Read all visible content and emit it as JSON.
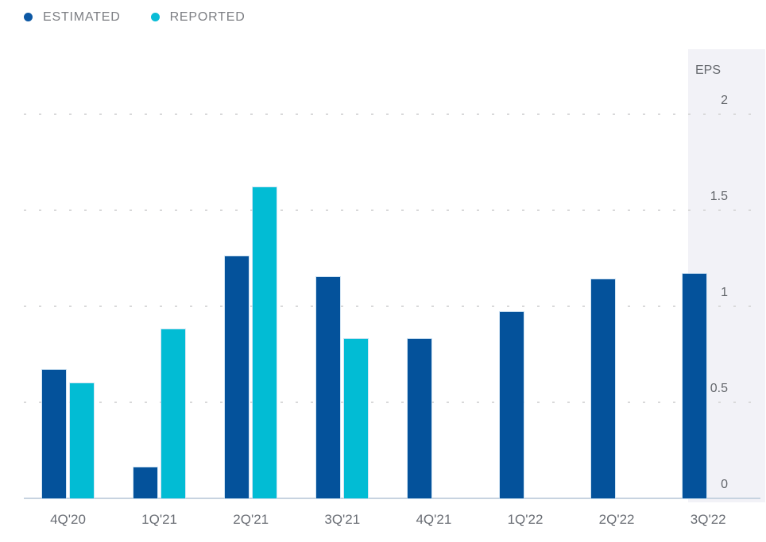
{
  "legend": {
    "items": [
      {
        "label": "ESTIMATED",
        "color": "#0c58a4"
      },
      {
        "label": "REPORTED",
        "color": "#0abcd6"
      }
    ]
  },
  "y_axis": {
    "title": "EPS"
  },
  "chart_data": {
    "type": "bar",
    "title": "",
    "xlabel": "",
    "ylabel": "EPS",
    "categories": [
      "4Q'20",
      "1Q'21",
      "2Q'21",
      "3Q'21",
      "4Q'21",
      "1Q'22",
      "2Q'22",
      "3Q'22"
    ],
    "series": [
      {
        "name": "ESTIMATED",
        "color": "#04529b",
        "values": [
          0.67,
          0.16,
          1.26,
          1.15,
          0.83,
          0.97,
          1.14,
          1.17
        ]
      },
      {
        "name": "REPORTED",
        "color": "#02bcd4",
        "values": [
          0.6,
          0.88,
          1.62,
          0.83,
          null,
          null,
          null,
          null
        ]
      }
    ],
    "yticks": [
      0,
      0.5,
      1,
      1.5,
      2
    ],
    "ylim": [
      0,
      2.34
    ],
    "grid": "dotted-horizontal",
    "legend_position": "top-left",
    "highlighted_category": "3Q'22",
    "highlight_color": "#f2f2f7"
  }
}
